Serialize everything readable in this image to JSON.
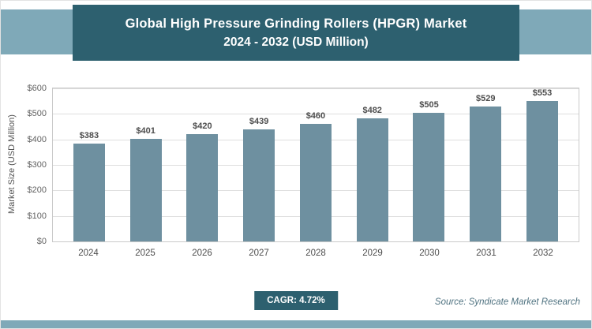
{
  "header": {
    "title_line1": "Global High Pressure Grinding Rollers (HPGR) Market",
    "title_line2": "2024 - 2032 (USD Million)"
  },
  "chart_data": {
    "type": "bar",
    "title": "Global High Pressure Grinding Rollers (HPGR) Market 2024 - 2032 (USD Million)",
    "categories": [
      "2024",
      "2025",
      "2026",
      "2027",
      "2028",
      "2029",
      "2030",
      "2031",
      "2032"
    ],
    "values": [
      383,
      401,
      420,
      439,
      460,
      482,
      505,
      529,
      553
    ],
    "value_labels": [
      "$383",
      "$401",
      "$420",
      "$439",
      "$460",
      "$482",
      "$505",
      "$529",
      "$553"
    ],
    "xlabel": "",
    "ylabel": "Market Size (USD Million)",
    "ylim": [
      0,
      600
    ],
    "yticks": [
      0,
      100,
      200,
      300,
      400,
      500,
      600
    ],
    "ytick_labels": [
      "$0",
      "$100",
      "$200",
      "$300",
      "$400",
      "$500",
      "$600"
    ],
    "grid": true,
    "legend": false,
    "bar_color": "#6e90a0"
  },
  "footer": {
    "cagr_label": "CAGR: 4.72%",
    "source": "Source: Syndicate Market Research"
  },
  "colors": {
    "band_teal": "#7fa9b8",
    "dark_teal": "#2d606f",
    "bar_fill": "#6e90a0",
    "gridline": "#dedede",
    "plot_border": "#c9c9c9"
  }
}
